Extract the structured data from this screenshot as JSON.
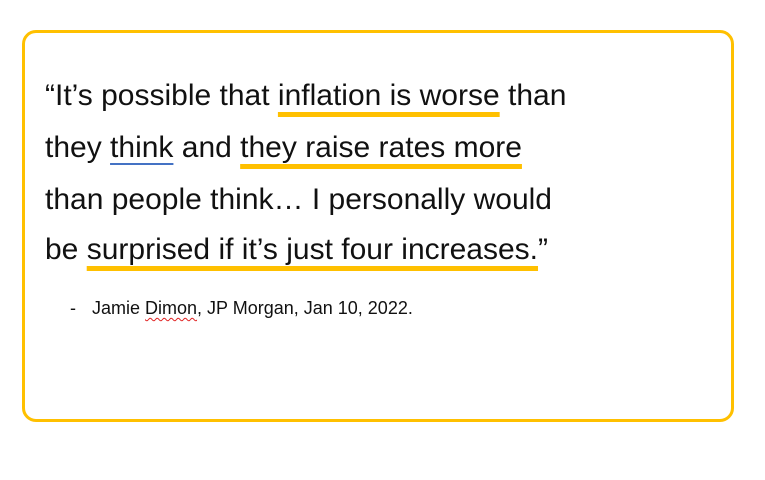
{
  "quote": {
    "lines": [
      [
        "“It’s possible that ",
        "inflation is worse",
        " than"
      ],
      [
        "they ",
        "think",
        " and ",
        "they raise rates more"
      ],
      [
        "than people think… I personally would"
      ],
      [
        "be ",
        "surprised if it’s just four increases.",
        "”"
      ]
    ]
  },
  "attribution": [
    "-",
    "Jamie ",
    "Dimon",
    ", JP Morgan, Jan 10, 2022."
  ]
}
